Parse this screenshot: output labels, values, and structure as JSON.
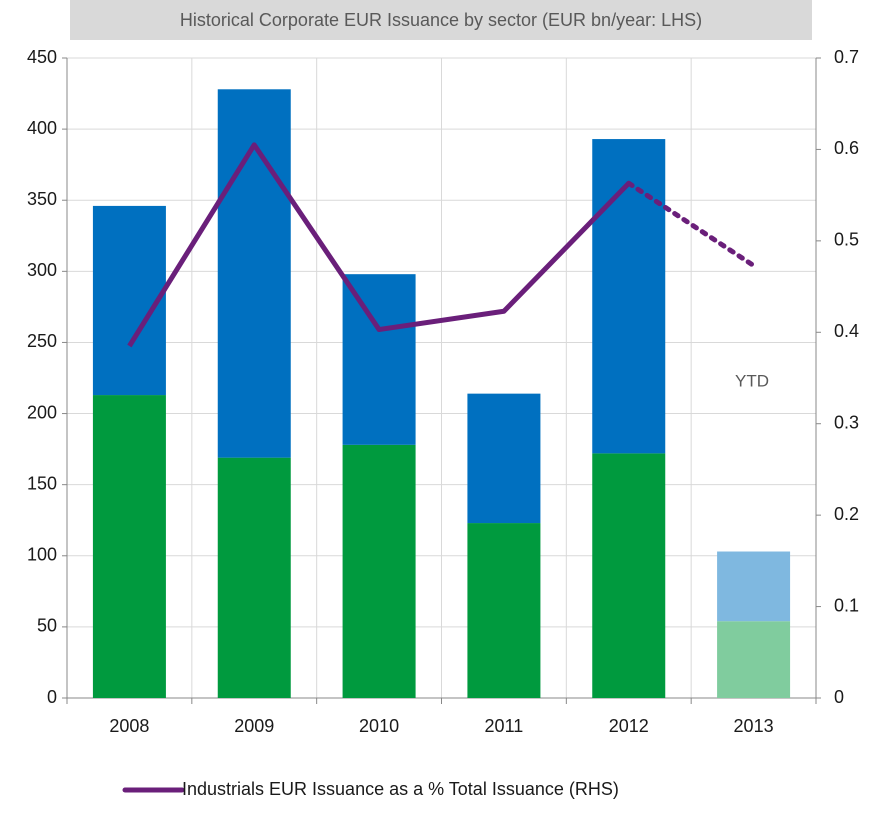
{
  "chart_data": {
    "type": "bar",
    "title": "Historical Corporate EUR Issuance by sector (EUR bn/year: LHS)",
    "annotation": "YTD",
    "categories": [
      "2008",
      "2009",
      "2010",
      "2011",
      "2012",
      "2013"
    ],
    "series": [
      {
        "color": "#009a3e",
        "colors": [
          "#009a3e",
          "#009a3e",
          "#009a3e",
          "#009a3e",
          "#009a3e",
          "#80cc9e"
        ],
        "values": [
          213,
          169,
          178,
          123,
          172,
          54
        ]
      },
      {
        "color": "#0070c0",
        "colors": [
          "#0070c0",
          "#0070c0",
          "#0070c0",
          "#0070c0",
          "#0070c0",
          "#7fb8e0"
        ],
        "values": [
          133,
          259,
          120,
          91,
          221,
          49
        ]
      },
      {
        "name": "Industrials EUR Issuance as a % Total Issuance (RHS)",
        "type": "line",
        "axis": "y2",
        "color": "#6a1f7a",
        "dotted_from": 4,
        "values": [
          0.385,
          0.605,
          0.403,
          0.423,
          0.563,
          0.473
        ]
      }
    ],
    "ylim": [
      0,
      450
    ],
    "yticks": [
      0,
      50,
      100,
      150,
      200,
      250,
      300,
      350,
      400,
      450
    ],
    "y2lim": [
      0,
      0.7
    ],
    "y2ticks": [
      0,
      0.1,
      0.2,
      0.3,
      0.4,
      0.5,
      0.6,
      0.7
    ],
    "grid": true,
    "legend": "bottom"
  }
}
